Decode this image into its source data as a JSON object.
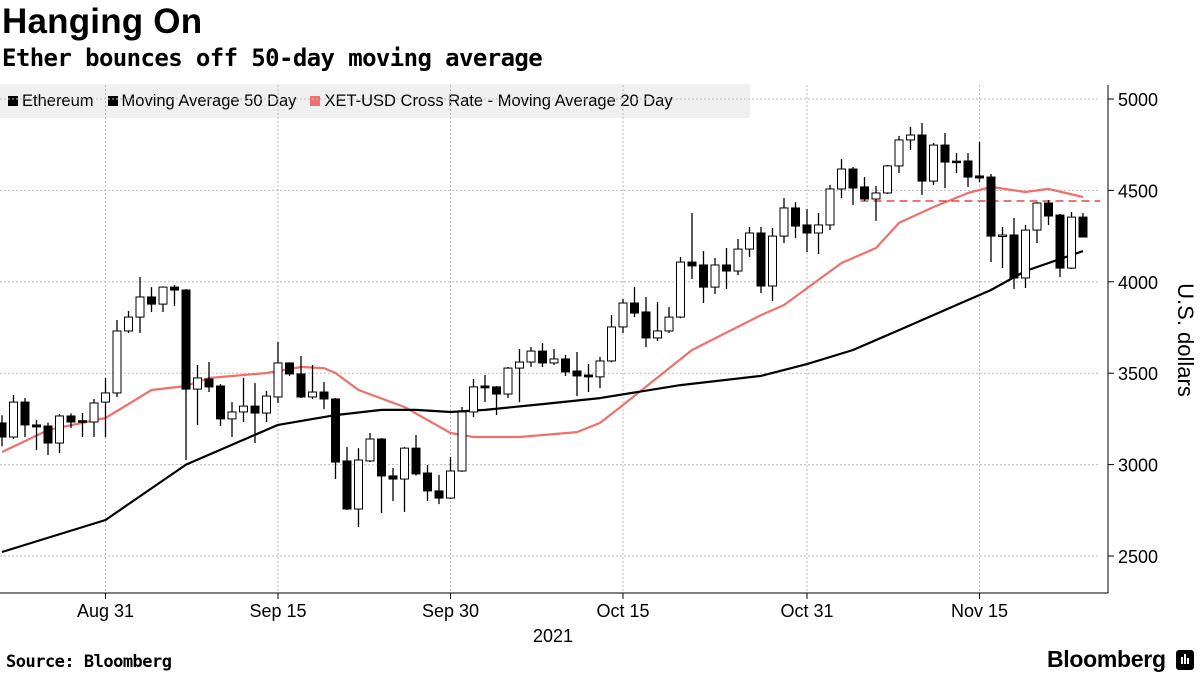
{
  "header": {
    "title": "Hanging On",
    "subtitle": "Ether bounces off 50-day moving average"
  },
  "footer": {
    "source": "Source: Bloomberg",
    "logo": "Bloomberg"
  },
  "colors": {
    "ethereum": "#000000",
    "ma50": "#000000",
    "ma20": "#f0706b",
    "reference_line": "#d9262b",
    "legend_bg": "#f0f0f0",
    "grid": "#bbbbbb"
  },
  "chart_data": {
    "type": "candlestick",
    "year": "2021",
    "legend": [
      "Ethereum",
      "Moving Average 50 Day",
      "XET-USD Cross Rate - Moving Average 20 Day"
    ],
    "legend_placement": "top-left",
    "ylabel": "U.S. dollars",
    "y_axis_side": "right",
    "ylim": [
      2300,
      5100
    ],
    "yticks": [
      "5000",
      "4500",
      "4000",
      "3500",
      "3000",
      "2500"
    ],
    "ytick_values": [
      5000,
      4500,
      4000,
      3500,
      3000,
      2500
    ],
    "xticks": [
      {
        "label": "Aug 31",
        "date": "08-31"
      },
      {
        "label": "Sep 15",
        "date": "09-15"
      },
      {
        "label": "Sep 30",
        "date": "09-30"
      },
      {
        "label": "Oct 15",
        "date": "10-15"
      },
      {
        "label": "Oct 31",
        "date": "10-31"
      },
      {
        "label": "Nov 15",
        "date": "11-15"
      }
    ],
    "xlabel": "2021",
    "grid": true,
    "reference_line": {
      "value": 4442,
      "style": "dashed",
      "from": "11-05"
    },
    "ohlc_columns": [
      "date",
      "open",
      "high",
      "low",
      "close"
    ],
    "ohlc": [
      [
        "08-22",
        3228,
        3270,
        3100,
        3151
      ],
      [
        "08-23",
        3151,
        3381,
        3140,
        3342
      ],
      [
        "08-24",
        3342,
        3364,
        3151,
        3217
      ],
      [
        "08-25",
        3217,
        3244,
        3080,
        3206
      ],
      [
        "08-26",
        3211,
        3230,
        3052,
        3118
      ],
      [
        "08-27",
        3118,
        3277,
        3063,
        3266
      ],
      [
        "08-28",
        3266,
        3280,
        3200,
        3233
      ],
      [
        "08-29",
        3240,
        3282,
        3151,
        3233
      ],
      [
        "08-30",
        3233,
        3359,
        3151,
        3337
      ],
      [
        "08-31",
        3342,
        3474,
        3151,
        3392
      ],
      [
        "09-01",
        3392,
        3791,
        3370,
        3731
      ],
      [
        "09-02",
        3731,
        3840,
        3720,
        3807
      ],
      [
        "09-03",
        3807,
        4026,
        3720,
        3917
      ],
      [
        "09-04",
        3917,
        3971,
        3835,
        3878
      ],
      [
        "09-05",
        3878,
        3975,
        3835,
        3971
      ],
      [
        "09-06",
        3971,
        3982,
        3868,
        3955
      ],
      [
        "09-07",
        3955,
        3960,
        3025,
        3413
      ],
      [
        "09-08",
        3413,
        3545,
        3217,
        3474
      ],
      [
        "09-09",
        3468,
        3561,
        3397,
        3425
      ],
      [
        "09-10",
        3430,
        3440,
        3211,
        3250
      ],
      [
        "09-11",
        3250,
        3342,
        3151,
        3288
      ],
      [
        "09-12",
        3288,
        3474,
        3233,
        3320
      ],
      [
        "09-13",
        3320,
        3446,
        3118,
        3282
      ],
      [
        "09-14",
        3282,
        3403,
        3233,
        3375
      ],
      [
        "09-15",
        3370,
        3671,
        3337,
        3556
      ],
      [
        "09-16",
        3556,
        3560,
        3485,
        3496
      ],
      [
        "09-17",
        3496,
        3594,
        3364,
        3370
      ],
      [
        "09-18",
        3370,
        3545,
        3359,
        3397
      ],
      [
        "09-19",
        3397,
        3452,
        3304,
        3359
      ],
      [
        "09-20",
        3359,
        3365,
        2921,
        3014
      ],
      [
        "09-21",
        3020,
        3096,
        2752,
        2757
      ],
      [
        "09-22",
        2757,
        3090,
        2659,
        3025
      ],
      [
        "09-23",
        3020,
        3173,
        3014,
        3140
      ],
      [
        "09-24",
        3140,
        3145,
        2735,
        2938
      ],
      [
        "09-25",
        2938,
        2981,
        2801,
        2921
      ],
      [
        "09-26",
        2921,
        3096,
        2741,
        3090
      ],
      [
        "09-27",
        3090,
        3162,
        2940,
        2949
      ],
      [
        "09-28",
        2954,
        2998,
        2801,
        2856
      ],
      [
        "09-29",
        2856,
        2943,
        2784,
        2817
      ],
      [
        "09-30",
        2817,
        3041,
        2812,
        2965
      ],
      [
        "10-01",
        2965,
        3315,
        2960,
        3288
      ],
      [
        "10-02",
        3288,
        3468,
        3260,
        3425
      ],
      [
        "10-03",
        3430,
        3490,
        3342,
        3420
      ],
      [
        "10-04",
        3425,
        3430,
        3271,
        3386
      ],
      [
        "10-05",
        3386,
        3534,
        3364,
        3528
      ],
      [
        "10-06",
        3528,
        3632,
        3342,
        3561
      ],
      [
        "10-07",
        3561,
        3643,
        3534,
        3621
      ],
      [
        "10-08",
        3621,
        3665,
        3534,
        3556
      ],
      [
        "10-09",
        3556,
        3632,
        3545,
        3578
      ],
      [
        "10-10",
        3578,
        3600,
        3485,
        3507
      ],
      [
        "10-11",
        3512,
        3616,
        3375,
        3485
      ],
      [
        "10-12",
        3490,
        3550,
        3397,
        3480
      ],
      [
        "10-13",
        3480,
        3589,
        3419,
        3567
      ],
      [
        "10-14",
        3567,
        3818,
        3560,
        3753
      ],
      [
        "10-15",
        3753,
        3906,
        3720,
        3884
      ],
      [
        "10-16",
        3884,
        3971,
        3807,
        3829
      ],
      [
        "10-17",
        3835,
        3917,
        3643,
        3693
      ],
      [
        "10-18",
        3693,
        3889,
        3676,
        3731
      ],
      [
        "10-19",
        3731,
        3862,
        3720,
        3807
      ],
      [
        "10-20",
        3807,
        4136,
        3800,
        4108
      ],
      [
        "10-21",
        4108,
        4376,
        4015,
        4087
      ],
      [
        "10-22",
        4092,
        4168,
        3884,
        3971
      ],
      [
        "10-23",
        3971,
        4130,
        3933,
        4092
      ],
      [
        "10-24",
        4092,
        4185,
        3960,
        4059
      ],
      [
        "10-25",
        4059,
        4234,
        4037,
        4179
      ],
      [
        "10-26",
        4179,
        4300,
        4136,
        4267
      ],
      [
        "10-27",
        4267,
        4300,
        3938,
        3977
      ],
      [
        "10-28",
        3977,
        4294,
        3895,
        4250
      ],
      [
        "10-29",
        4250,
        4458,
        4212,
        4404
      ],
      [
        "10-30",
        4404,
        4436,
        4239,
        4305
      ],
      [
        "10-31",
        4311,
        4398,
        4163,
        4267
      ],
      [
        "11-01",
        4267,
        4376,
        4152,
        4311
      ],
      [
        "11-02",
        4311,
        4530,
        4283,
        4508
      ],
      [
        "11-03",
        4508,
        4672,
        4458,
        4617
      ],
      [
        "11-04",
        4617,
        4628,
        4420,
        4513
      ],
      [
        "11-05",
        4519,
        4573,
        4442,
        4453
      ],
      [
        "11-06",
        4453,
        4524,
        4333,
        4486
      ],
      [
        "11-07",
        4486,
        4639,
        4480,
        4634
      ],
      [
        "11-08",
        4634,
        4798,
        4595,
        4776
      ],
      [
        "11-09",
        4776,
        4847,
        4721,
        4803
      ],
      [
        "11-10",
        4803,
        4869,
        4475,
        4551
      ],
      [
        "11-11",
        4551,
        4759,
        4530,
        4748
      ],
      [
        "11-12",
        4748,
        4814,
        4513,
        4655
      ],
      [
        "11-13",
        4660,
        4704,
        4595,
        4655
      ],
      [
        "11-14",
        4661,
        4704,
        4519,
        4573
      ],
      [
        "11-15",
        4579,
        4765,
        4546,
        4568
      ],
      [
        "11-16",
        4573,
        4590,
        4108,
        4250
      ],
      [
        "11-17",
        4256,
        4300,
        4075,
        4256
      ],
      [
        "11-18",
        4256,
        4349,
        3960,
        4021
      ],
      [
        "11-19",
        4021,
        4311,
        3966,
        4283
      ],
      [
        "11-20",
        4283,
        4436,
        4212,
        4431
      ],
      [
        "11-21",
        4431,
        4447,
        4311,
        4360
      ],
      [
        "11-22",
        4365,
        4371,
        4026,
        4075
      ],
      [
        "11-23",
        4075,
        4382,
        4070,
        4354
      ],
      [
        "11-24",
        4354,
        4376,
        4245,
        4245
      ]
    ],
    "series": [
      {
        "name": "Moving Average 50 Day",
        "points": [
          [
            "08-22",
            2522
          ],
          [
            "08-31",
            2697
          ],
          [
            "09-07",
            3000
          ],
          [
            "09-15",
            3217
          ],
          [
            "09-20",
            3271
          ],
          [
            "09-24",
            3299
          ],
          [
            "09-27",
            3299
          ],
          [
            "09-30",
            3288
          ],
          [
            "10-03",
            3299
          ],
          [
            "10-08",
            3331
          ],
          [
            "10-13",
            3364
          ],
          [
            "10-20",
            3435
          ],
          [
            "10-27",
            3485
          ],
          [
            "10-31",
            3550
          ],
          [
            "11-04",
            3627
          ],
          [
            "11-08",
            3736
          ],
          [
            "11-13",
            3873
          ],
          [
            "11-16",
            3955
          ],
          [
            "11-19",
            4059
          ],
          [
            "11-24",
            4168
          ]
        ]
      },
      {
        "name": "XET-USD Cross Rate - Moving Average 20 Day",
        "points": [
          [
            "08-22",
            3069
          ],
          [
            "08-26",
            3189
          ],
          [
            "08-31",
            3255
          ],
          [
            "09-04",
            3408
          ],
          [
            "09-07",
            3430
          ],
          [
            "09-09",
            3474
          ],
          [
            "09-14",
            3501
          ],
          [
            "09-17",
            3534
          ],
          [
            "09-19",
            3528
          ],
          [
            "09-20",
            3501
          ],
          [
            "09-22",
            3408
          ],
          [
            "09-26",
            3315
          ],
          [
            "09-28",
            3244
          ],
          [
            "09-30",
            3173
          ],
          [
            "10-02",
            3151
          ],
          [
            "10-06",
            3151
          ],
          [
            "10-11",
            3178
          ],
          [
            "10-13",
            3228
          ],
          [
            "10-15",
            3326
          ],
          [
            "10-21",
            3627
          ],
          [
            "10-27",
            3818
          ],
          [
            "10-29",
            3873
          ],
          [
            "11-03",
            4103
          ],
          [
            "11-06",
            4185
          ],
          [
            "11-08",
            4322
          ],
          [
            "11-11",
            4409
          ],
          [
            "11-14",
            4486
          ],
          [
            "11-16",
            4519
          ],
          [
            "11-19",
            4491
          ],
          [
            "11-21",
            4508
          ],
          [
            "11-24",
            4464
          ]
        ]
      }
    ]
  }
}
